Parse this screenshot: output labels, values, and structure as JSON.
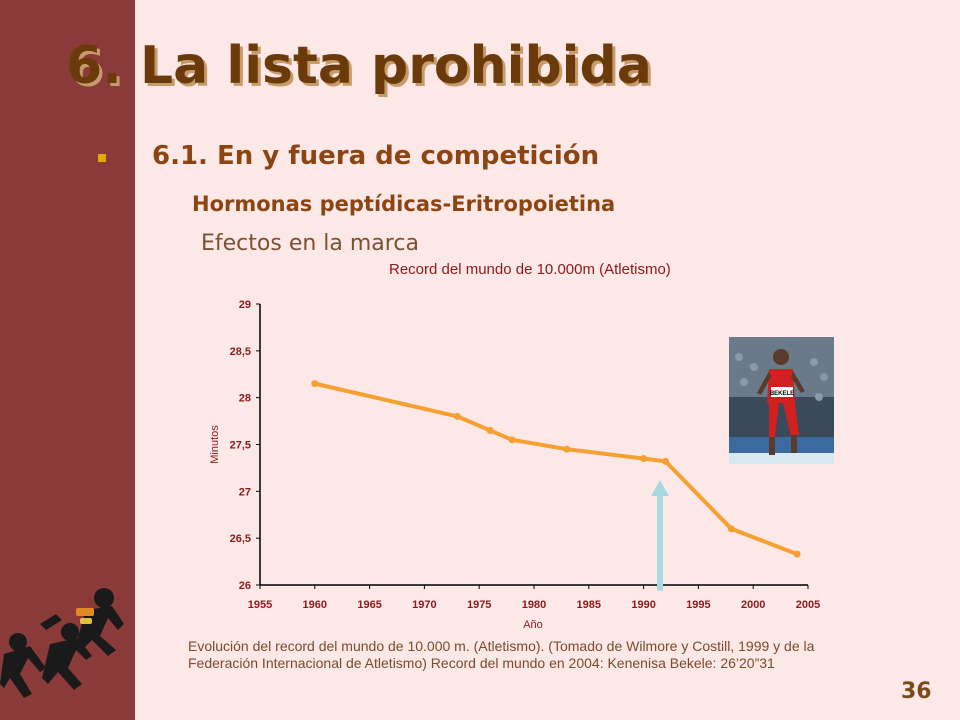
{
  "slide": {
    "title": "6. La lista prohibida",
    "subtitle": "6.1. En y fuera de competición",
    "subsubtitle": "Hormonas peptídicas-Eritropoietina",
    "section": "Efectos en la marca",
    "caption": "Evolución del record del mundo de 10.000 m. (Atletismo). (Tomado de Wilmore y Costill, 1999 y de la Federación Internacional de Atletismo) Record del mundo en 2004: Kenenisa Bekele: 26’20”31",
    "page_number": "36",
    "photo_bib": "BEKELE"
  },
  "colors": {
    "sidebar": "#8b3a3a",
    "background": "#fde8e8",
    "series_line": "#f5a030",
    "axis_text": "#8b1a1a",
    "arrow": "#a8d8e0"
  },
  "icons": {
    "logo": "athletes-logo",
    "arrow": "up-arrow-icon",
    "bullet": "square-bullet"
  },
  "chart_data": {
    "type": "line",
    "title": "Record del mundo de 10.000m (Atletismo)",
    "xlabel": "Año",
    "ylabel": "Minutos",
    "xlim": [
      1955,
      2005
    ],
    "ylim": [
      26,
      29
    ],
    "x_ticks": [
      "1955",
      "1960",
      "1965",
      "1970",
      "1975",
      "1980",
      "1985",
      "1990",
      "1995",
      "2000",
      "2005"
    ],
    "y_ticks": [
      "26",
      "26,5",
      "27",
      "27,5",
      "28",
      "28,5",
      "29"
    ],
    "series": [
      {
        "x": [
          1960,
          1973,
          1976,
          1978,
          1983,
          1990,
          1992,
          1998,
          2004
        ],
        "y": [
          28.15,
          27.8,
          27.65,
          27.55,
          27.45,
          27.35,
          27.32,
          26.6,
          26.33
        ]
      }
    ],
    "annotation_arrow_x": 1991.5,
    "grid": false,
    "legend": "none"
  }
}
